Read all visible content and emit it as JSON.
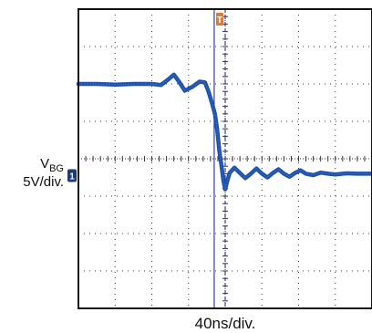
{
  "chart_data": {
    "type": "line",
    "title": "",
    "channel": {
      "name_main": "V",
      "name_sub": "BG",
      "scale": "5V/div."
    },
    "xlabel": "40ns/div.",
    "x_divisions": 8,
    "y_divisions": 8,
    "x_unit_per_div_ns": 40,
    "y_unit_per_div_V": 5,
    "grid": true,
    "trigger_marker": "T",
    "ground_marker": "1",
    "cursor_times_div": [
      3.7,
      4.0
    ],
    "series": [
      {
        "values_div": [
          [
            0.0,
            6.0
          ],
          [
            0.5,
            6.0
          ],
          [
            1.0,
            5.98
          ],
          [
            1.5,
            6.0
          ],
          [
            2.0,
            6.0
          ],
          [
            2.25,
            5.97
          ],
          [
            2.45,
            6.12
          ],
          [
            2.6,
            6.25
          ],
          [
            2.75,
            6.05
          ],
          [
            2.9,
            5.82
          ],
          [
            3.1,
            5.92
          ],
          [
            3.3,
            6.06
          ],
          [
            3.45,
            6.04
          ],
          [
            3.55,
            5.78
          ],
          [
            3.65,
            5.45
          ],
          [
            3.72,
            5.2
          ],
          [
            3.78,
            4.8
          ],
          [
            3.84,
            4.2
          ],
          [
            3.9,
            3.8
          ],
          [
            3.95,
            3.42
          ],
          [
            4.0,
            3.18
          ],
          [
            4.05,
            3.38
          ],
          [
            4.12,
            3.62
          ],
          [
            4.25,
            3.76
          ],
          [
            4.4,
            3.62
          ],
          [
            4.55,
            3.48
          ],
          [
            4.7,
            3.6
          ],
          [
            4.85,
            3.74
          ],
          [
            5.0,
            3.6
          ],
          [
            5.15,
            3.5
          ],
          [
            5.3,
            3.62
          ],
          [
            5.45,
            3.72
          ],
          [
            5.6,
            3.6
          ],
          [
            5.75,
            3.52
          ],
          [
            5.9,
            3.62
          ],
          [
            6.05,
            3.69
          ],
          [
            6.2,
            3.6
          ],
          [
            6.4,
            3.56
          ],
          [
            6.6,
            3.63
          ],
          [
            6.8,
            3.6
          ],
          [
            7.0,
            3.58
          ],
          [
            7.3,
            3.61
          ],
          [
            7.6,
            3.6
          ],
          [
            8.0,
            3.6
          ]
        ],
        "color": "#1d4fa8"
      }
    ]
  },
  "colors": {
    "trace": "#1d4fa8",
    "grid": "#333333",
    "frame": "#111111",
    "cursor": "#3a3f8f",
    "trigger": "#e07a2e",
    "marker": "#1d3a7a"
  }
}
